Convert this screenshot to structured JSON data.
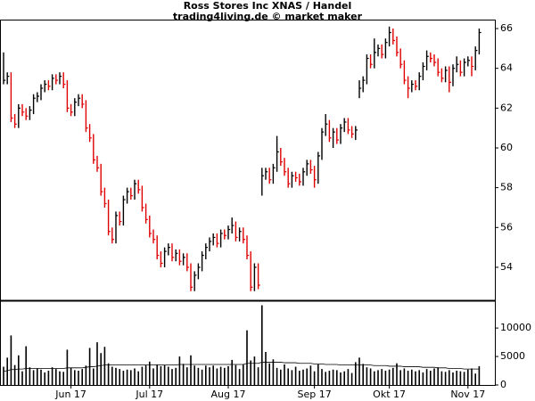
{
  "chart_data": [
    {
      "type": "ohlc",
      "title": "Ross Stores Inc XNAS / Handel",
      "subtitle": "trading4living.de © market maker",
      "up_color": "#000000",
      "down_color": "#e00000",
      "ylim": [
        52.34,
        66.45
      ],
      "yticks": [
        54,
        56,
        58,
        60,
        62,
        64,
        66
      ],
      "high": [
        64.8,
        63.8,
        63.8,
        61.7,
        62.2,
        62.2,
        62.0,
        62.1,
        62.7,
        62.8,
        63.2,
        63.4,
        63.4,
        63.7,
        63.7,
        63.8,
        63.8,
        63.4,
        62.2,
        62.5,
        62.7,
        62.7,
        62.4,
        61.2,
        60.7,
        59.6,
        59.2,
        58.0,
        57.4,
        56.0,
        56.8,
        56.8,
        57.6,
        58.0,
        58.0,
        58.4,
        58.4,
        58.1,
        57.2,
        56.6,
        55.9,
        55.6,
        54.8,
        55.0,
        55.2,
        55.2,
        54.9,
        54.9,
        54.7,
        54.7,
        54.2,
        53.8,
        54.2,
        54.8,
        55.2,
        55.5,
        55.7,
        55.7,
        55.9,
        55.9,
        56.1,
        56.5,
        56.3,
        56.0,
        56.0,
        55.6,
        54.8,
        54.2,
        54.2,
        59.0,
        59.0,
        59.0,
        59.2,
        60.6,
        60.0,
        59.5,
        59.0,
        58.8,
        58.8,
        58.7,
        59.0,
        59.4,
        59.4,
        59.1,
        59.8,
        61.0,
        61.7,
        61.4,
        61.0,
        61.0,
        61.2,
        61.5,
        61.5,
        61.1,
        61.1,
        63.4,
        63.6,
        64.7,
        64.7,
        65.5,
        65.2,
        65.2,
        65.5,
        66.1,
        66.0,
        65.6,
        65.0,
        64.4,
        63.6,
        63.4,
        63.4,
        63.8,
        64.3,
        64.9,
        64.8,
        64.7,
        64.5,
        64.0,
        64.1,
        64.1,
        64.2,
        64.6,
        64.4,
        64.5,
        64.6,
        64.6,
        65.1,
        66.0
      ],
      "low": [
        63.2,
        63.2,
        61.3,
        61.0,
        61.0,
        61.6,
        61.4,
        61.4,
        61.7,
        62.3,
        62.4,
        62.8,
        62.9,
        62.9,
        63.2,
        63.2,
        63.0,
        61.8,
        61.6,
        61.6,
        62.1,
        62.0,
        60.8,
        60.3,
        59.2,
        58.8,
        57.6,
        57.0,
        55.6,
        55.2,
        55.2,
        56.1,
        56.1,
        57.2,
        57.4,
        57.4,
        57.7,
        56.8,
        56.2,
        55.5,
        55.2,
        54.4,
        54.0,
        54.0,
        54.6,
        54.3,
        54.3,
        54.1,
        54.1,
        53.8,
        52.8,
        52.8,
        53.4,
        53.8,
        54.4,
        54.8,
        55.1,
        55.0,
        55.0,
        55.4,
        55.4,
        55.7,
        55.3,
        55.3,
        55.2,
        54.4,
        52.8,
        52.8,
        52.9,
        57.6,
        58.4,
        58.2,
        58.2,
        58.8,
        59.1,
        58.6,
        58.0,
        58.0,
        58.3,
        58.1,
        58.1,
        58.6,
        58.7,
        58.0,
        58.2,
        59.4,
        60.6,
        60.3,
        60.0,
        60.2,
        60.2,
        60.8,
        60.7,
        60.5,
        60.4,
        62.5,
        62.8,
        63.2,
        64.0,
        64.0,
        64.6,
        64.5,
        64.5,
        65.1,
        65.2,
        64.6,
        64.0,
        63.2,
        62.5,
        62.8,
        62.9,
        62.9,
        63.4,
        63.9,
        64.3,
        64.1,
        63.6,
        63.3,
        63.3,
        62.8,
        63.1,
        63.8,
        63.6,
        63.6,
        64.1,
        63.6,
        63.9,
        64.7
      ],
      "close": [
        63.4,
        63.6,
        61.5,
        61.2,
        62.0,
        61.8,
        61.6,
        61.9,
        62.5,
        62.6,
        63.0,
        63.2,
        63.1,
        63.5,
        63.4,
        63.6,
        63.2,
        62.0,
        61.8,
        62.3,
        62.5,
        62.2,
        61.0,
        60.5,
        59.4,
        59.0,
        57.8,
        57.2,
        55.8,
        55.4,
        56.6,
        56.3,
        57.4,
        57.8,
        57.6,
        58.2,
        57.9,
        57.0,
        56.4,
        55.7,
        55.4,
        54.6,
        54.2,
        54.8,
        55.0,
        54.5,
        54.7,
        54.3,
        54.5,
        54.0,
        53.0,
        53.6,
        54.0,
        54.6,
        55.0,
        55.3,
        55.5,
        55.2,
        55.7,
        55.6,
        55.9,
        56.1,
        55.5,
        55.8,
        55.4,
        54.6,
        53.0,
        54.0,
        53.1,
        58.6,
        58.8,
        58.4,
        59.0,
        59.8,
        59.3,
        58.8,
        58.2,
        58.6,
        58.5,
        58.3,
        58.8,
        59.2,
        58.9,
        58.4,
        59.6,
        60.8,
        61.2,
        60.5,
        60.8,
        60.4,
        61.0,
        61.3,
        60.9,
        60.7,
        60.9,
        63.0,
        63.4,
        64.5,
        64.2,
        64.8,
        65.0,
        64.7,
        65.3,
        65.8,
        65.4,
        64.8,
        64.2,
        63.4,
        63.0,
        63.2,
        63.1,
        63.6,
        64.1,
        64.6,
        64.5,
        64.3,
        63.8,
        63.5,
        63.9,
        63.3,
        64.0,
        64.2,
        63.8,
        64.3,
        64.4,
        64.1,
        64.9,
        65.8
      ]
    },
    {
      "type": "volume",
      "color": "#000000",
      "average_color": "#000000",
      "ylim": [
        0,
        14400
      ],
      "yticks": [
        0,
        5000,
        10000
      ],
      "categories": [
        null,
        null,
        null,
        null,
        null,
        null,
        null,
        null,
        null,
        null,
        null,
        null,
        null,
        null,
        null,
        null,
        null,
        null,
        "Jun 17",
        null,
        null,
        null,
        null,
        null,
        null,
        null,
        null,
        null,
        null,
        null,
        null,
        null,
        null,
        null,
        null,
        null,
        null,
        null,
        null,
        "Jul 17",
        null,
        null,
        null,
        null,
        null,
        null,
        null,
        null,
        null,
        null,
        null,
        null,
        null,
        null,
        null,
        null,
        null,
        null,
        null,
        null,
        "Aug 17",
        null,
        null,
        null,
        null,
        null,
        null,
        null,
        null,
        null,
        null,
        null,
        null,
        null,
        null,
        null,
        null,
        null,
        null,
        null,
        null,
        null,
        null,
        "Sep 17",
        null,
        null,
        null,
        null,
        null,
        null,
        null,
        null,
        null,
        null,
        null,
        null,
        null,
        null,
        null,
        null,
        null,
        null,
        null,
        "Okt 17",
        null,
        null,
        null,
        null,
        null,
        null,
        null,
        null,
        null,
        null,
        null,
        null,
        null,
        null,
        null,
        null,
        null,
        null,
        null,
        null,
        "Nov 17",
        null,
        null,
        null
      ],
      "values": [
        3200,
        4800,
        8700,
        3500,
        5200,
        2400,
        6800,
        3100,
        2600,
        2900,
        2700,
        2200,
        2500,
        3100,
        2800,
        2400,
        2300,
        6200,
        3000,
        2600,
        2500,
        2800,
        3400,
        6500,
        2900,
        7500,
        5600,
        6700,
        3800,
        3200,
        3000,
        2800,
        2500,
        2700,
        2600,
        2900,
        2400,
        3200,
        3500,
        4100,
        2900,
        3600,
        3300,
        3500,
        3200,
        2800,
        3000,
        5000,
        3700,
        3100,
        5200,
        3400,
        3000,
        2700,
        3400,
        3100,
        3400,
        2900,
        3200,
        3000,
        3300,
        4400,
        3500,
        2800,
        3600,
        9600,
        4300,
        5000,
        3100,
        14000,
        5800,
        3800,
        4500,
        3000,
        2700,
        3600,
        2900,
        2600,
        3200,
        2500,
        2700,
        2900,
        3400,
        2400,
        3600,
        2800,
        2300,
        2500,
        2700,
        2600,
        2200,
        2400,
        2800,
        2100,
        4000,
        4800,
        3700,
        3100,
        2900,
        2400,
        2600,
        2800,
        2500,
        2700,
        3000,
        3800,
        2600,
        2900,
        2500,
        2700,
        2400,
        2600,
        2200,
        2800,
        2500,
        2900,
        3100,
        2400,
        2300,
        2600,
        2200,
        2500,
        2400,
        2300,
        2700,
        2900,
        2000,
        3300
      ],
      "average": [
        2400,
        2500,
        2700,
        2700,
        2800,
        2800,
        2900,
        2900,
        2900,
        2900,
        2900,
        2900,
        2900,
        2900,
        2900,
        2900,
        2900,
        3000,
        3000,
        3000,
        3000,
        3000,
        3100,
        3200,
        3200,
        3300,
        3400,
        3500,
        3500,
        3500,
        3500,
        3500,
        3500,
        3500,
        3500,
        3500,
        3500,
        3500,
        3500,
        3500,
        3500,
        3500,
        3500,
        3500,
        3500,
        3500,
        3500,
        3600,
        3600,
        3600,
        3600,
        3600,
        3600,
        3600,
        3600,
        3600,
        3600,
        3600,
        3600,
        3600,
        3600,
        3600,
        3600,
        3600,
        3600,
        3800,
        3800,
        3800,
        3800,
        4000,
        4000,
        4000,
        4000,
        4000,
        4000,
        3900,
        3900,
        3900,
        3900,
        3800,
        3800,
        3800,
        3800,
        3700,
        3700,
        3700,
        3600,
        3600,
        3600,
        3600,
        3500,
        3500,
        3500,
        3500,
        3500,
        3500,
        3500,
        3500,
        3500,
        3400,
        3400,
        3400,
        3400,
        3300,
        3300,
        3300,
        3300,
        3200,
        3200,
        3200,
        3200,
        3200,
        3100,
        3100,
        3100,
        3100,
        3000,
        3000,
        3000,
        2900,
        2900,
        2900,
        2900,
        2800,
        2800,
        2800,
        2800,
        2800
      ]
    }
  ]
}
